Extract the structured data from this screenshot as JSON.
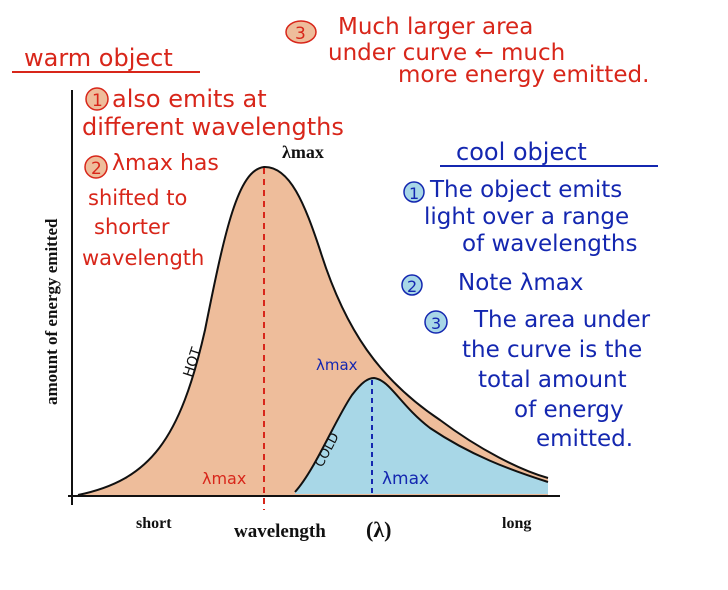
{
  "colors": {
    "red_ink": "#d8261a",
    "blue_ink": "#1427b0",
    "hot_fill": "#eebd9b",
    "cold_fill": "#a8d7e7",
    "axis": "#111111"
  },
  "axes": {
    "ylabel": "amount of energy emitted",
    "xlabel": "wavelength",
    "xlabel_symbol": "(λ)",
    "x_short": "short",
    "x_long": "long"
  },
  "hot_curve": {
    "tag": "HOT",
    "peak_label": "λmax",
    "bottom_label": "λmax"
  },
  "cold_curve": {
    "tag": "COLD",
    "peak_label": "λmax",
    "bottom_label": "λmax"
  },
  "warm_notes": {
    "heading": "warm object",
    "note1_num": "1",
    "note1_line1": "also emits at",
    "note1_line2": "different wavelengths",
    "note2_num": "2",
    "note2_line1": "λmax has",
    "note2_line2": "shifted to",
    "note2_line3": "shorter",
    "note2_line4": "wavelength"
  },
  "area_note": {
    "num": "3",
    "line1": "Much larger area",
    "line2": "under curve ← much",
    "line3": "more energy emitted."
  },
  "cool_notes": {
    "heading": "cool object",
    "note1_num": "1",
    "note1_line1": "The object emits",
    "note1_line2": "light over a range",
    "note1_line3": "of wavelengths",
    "note2_num": "2",
    "note2_text": "Note λmax",
    "note3_num": "3",
    "note3_line1": "The area under",
    "note3_line2": "the curve is the",
    "note3_line3": "total amount",
    "note3_line4": "of energy",
    "note3_line5": "emitted."
  }
}
